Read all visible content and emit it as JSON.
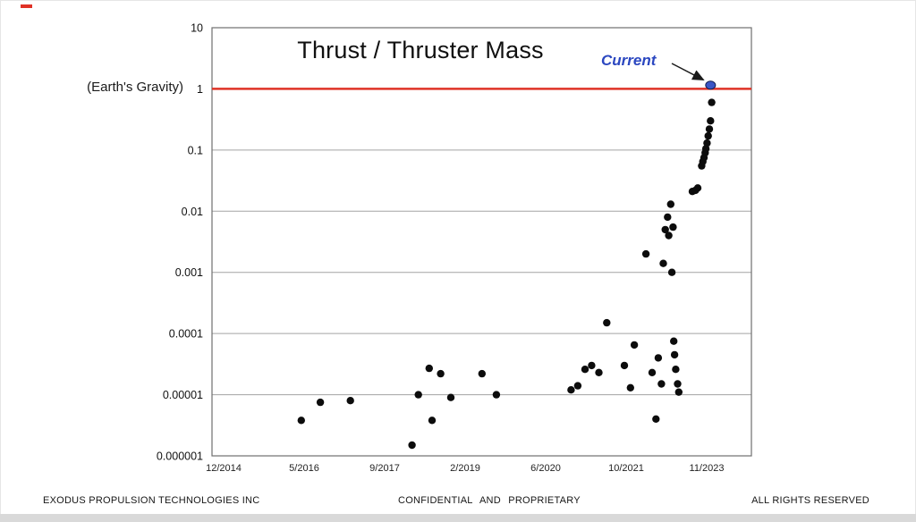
{
  "frame": {
    "footer_left": "EXODUS PROPULSION TECHNOLOGIES INC",
    "footer_center": "CONFIDENTIAL AND PROPRIETARY",
    "footer_right": "ALL RIGHTS RESERVED"
  },
  "chart_data": {
    "type": "scatter",
    "title": "Thrust / Thruster Mass",
    "y_axis_annotation": "(Earth's Gravity)",
    "current_label": "Current",
    "y_scale": "log10",
    "ylim": [
      1e-06,
      10
    ],
    "grid": "horizontal-decade-lines",
    "legend": "none",
    "y_ticks": [
      "10",
      "1",
      "0.1",
      "0.01",
      "0.001",
      "0.0001",
      "0.00001",
      "0.000001"
    ],
    "x_ticks": [
      {
        "label": "12/2014",
        "t": 2014.92
      },
      {
        "label": "5/2016",
        "t": 2016.33
      },
      {
        "label": "9/2017",
        "t": 2017.67
      },
      {
        "label": "2/2019",
        "t": 2019.08
      },
      {
        "label": "6/2020",
        "t": 2020.42
      },
      {
        "label": "10/2021",
        "t": 2021.75
      },
      {
        "label": "11/2023",
        "t": 2023.83
      }
    ],
    "reference_line": {
      "y": 1,
      "color": "#df3226"
    },
    "series": [
      {
        "name": "thrust-to-thruster-mass measurements",
        "color": "#0c0c0c",
        "points": [
          [
            2016.28,
            3.8e-06
          ],
          [
            2016.6,
            7.5e-06
          ],
          [
            2017.1,
            8e-06
          ],
          [
            2018.15,
            1.5e-06
          ],
          [
            2018.26,
            1e-05
          ],
          [
            2018.45,
            2.7e-05
          ],
          [
            2018.5,
            3.8e-06
          ],
          [
            2018.65,
            2.2e-05
          ],
          [
            2018.83,
            9e-06
          ],
          [
            2019.36,
            2.2e-05
          ],
          [
            2019.6,
            1e-05
          ],
          [
            2020.84,
            1.2e-05
          ],
          [
            2020.95,
            1.4e-05
          ],
          [
            2021.07,
            2.6e-05
          ],
          [
            2021.18,
            3e-05
          ],
          [
            2021.3,
            2.3e-05
          ],
          [
            2021.43,
            0.00015
          ],
          [
            2021.72,
            3e-05
          ],
          [
            2021.86,
            1.3e-05
          ],
          [
            2021.96,
            6.5e-05
          ],
          [
            2022.26,
            0.002
          ],
          [
            2022.42,
            2.3e-05
          ],
          [
            2022.52,
            4e-06
          ],
          [
            2022.58,
            4e-05
          ],
          [
            2022.66,
            1.5e-05
          ],
          [
            2022.71,
            0.0014
          ],
          [
            2022.76,
            0.005
          ],
          [
            2022.82,
            0.008
          ],
          [
            2022.85,
            0.004
          ],
          [
            2022.9,
            0.013
          ],
          [
            2022.93,
            0.001
          ],
          [
            2022.96,
            0.0055
          ],
          [
            2022.98,
            7.5e-05
          ],
          [
            2023.0,
            4.5e-05
          ],
          [
            2023.03,
            2.6e-05
          ],
          [
            2023.08,
            1.5e-05
          ],
          [
            2023.11,
            1.1e-05
          ],
          [
            2023.46,
            0.021
          ],
          [
            2023.54,
            0.022
          ],
          [
            2023.6,
            0.024
          ],
          [
            2023.7,
            0.055
          ],
          [
            2023.73,
            0.065
          ],
          [
            2023.76,
            0.075
          ],
          [
            2023.79,
            0.09
          ],
          [
            2023.81,
            0.105
          ],
          [
            2023.84,
            0.13
          ],
          [
            2023.87,
            0.17
          ],
          [
            2023.9,
            0.22
          ],
          [
            2023.93,
            0.3
          ],
          [
            2023.96,
            0.6
          ]
        ]
      }
    ],
    "current_point": {
      "x": 2023.93,
      "y": 1.15,
      "fill": "#3a55c5",
      "stroke": "#101c4e"
    }
  }
}
